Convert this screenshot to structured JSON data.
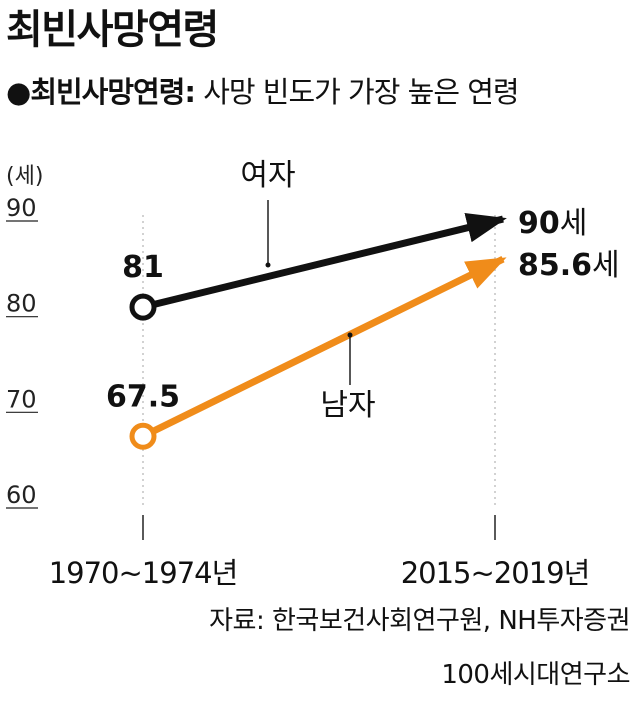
{
  "title": "최빈사망연령",
  "subtitle": {
    "bullet": "●",
    "term": "최빈사망연령:",
    "definition": "사망 빈도가 가장 높은 연령"
  },
  "chart_data": {
    "type": "line",
    "x": [
      "1970~1974년",
      "2015~2019년"
    ],
    "ylabel": "(세)",
    "yticks": [
      "90",
      "80",
      "70",
      "60"
    ],
    "ylim": [
      60,
      90
    ],
    "series": [
      {
        "name": "여자",
        "values": [
          81,
          90
        ],
        "labels": [
          "81",
          "90"
        ],
        "unit": "세",
        "color": "#111111"
      },
      {
        "name": "남자",
        "values": [
          67.5,
          85.6
        ],
        "labels": [
          "67.5",
          "85.6"
        ],
        "unit": "세",
        "color": "#f08c1a"
      }
    ]
  },
  "source": {
    "line1": "자료: 한국보건사회연구원, NH투자증권",
    "line2": "100세시대연구소"
  }
}
